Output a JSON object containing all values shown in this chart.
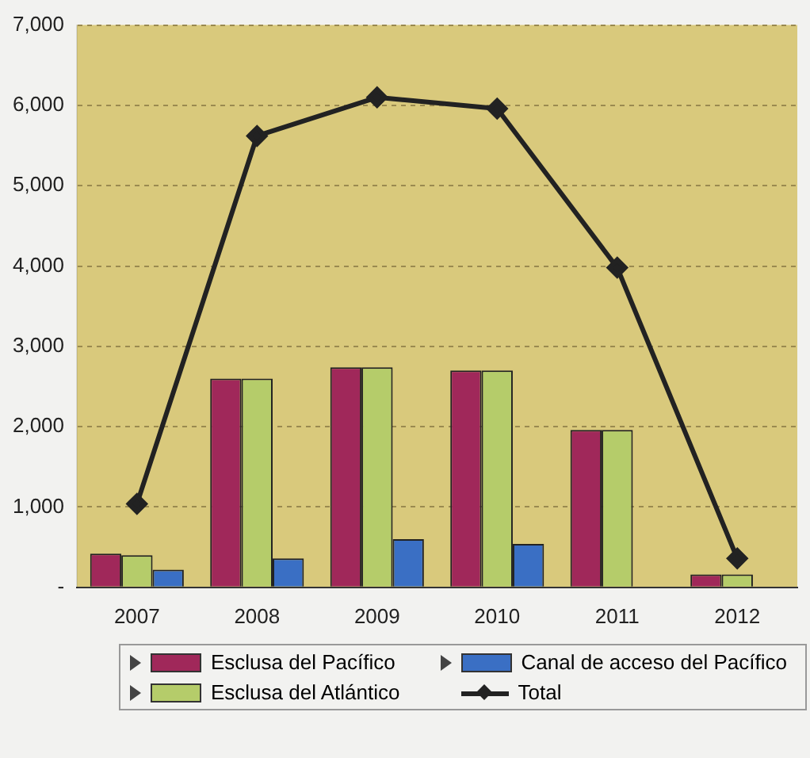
{
  "chart_data": {
    "type": "bar",
    "categories": [
      "2007",
      "2008",
      "2009",
      "2010",
      "2011",
      "2012"
    ],
    "series": [
      {
        "name": "Esclusa del Pacífico",
        "color": "#a0285a",
        "values": [
          420,
          2600,
          2740,
          2700,
          1960,
          160
        ]
      },
      {
        "name": "Esclusa del Atlántico",
        "color": "#b5cc6a",
        "values": [
          400,
          2600,
          2740,
          2700,
          1960,
          160
        ]
      },
      {
        "name": "Canal de acceso del Pacífico",
        "color": "#3a6fc4",
        "values": [
          220,
          360,
          600,
          540,
          0,
          0
        ]
      },
      {
        "name": "Total",
        "color": "#222222",
        "type": "line",
        "marker": "diamond",
        "values": [
          1040,
          5620,
          6100,
          5960,
          3980,
          360
        ]
      }
    ],
    "ylim": [
      0,
      7000
    ],
    "yticks": [
      {
        "value": 0,
        "label": "-"
      },
      {
        "value": 1000,
        "label": "1,000"
      },
      {
        "value": 2000,
        "label": "2,000"
      },
      {
        "value": 3000,
        "label": "3,000"
      },
      {
        "value": 4000,
        "label": "4,000"
      },
      {
        "value": 5000,
        "label": "5,000"
      },
      {
        "value": 6000,
        "label": "6,000"
      },
      {
        "value": 7000,
        "label": "7,000"
      }
    ],
    "grid": "y",
    "legend": "bottom"
  }
}
